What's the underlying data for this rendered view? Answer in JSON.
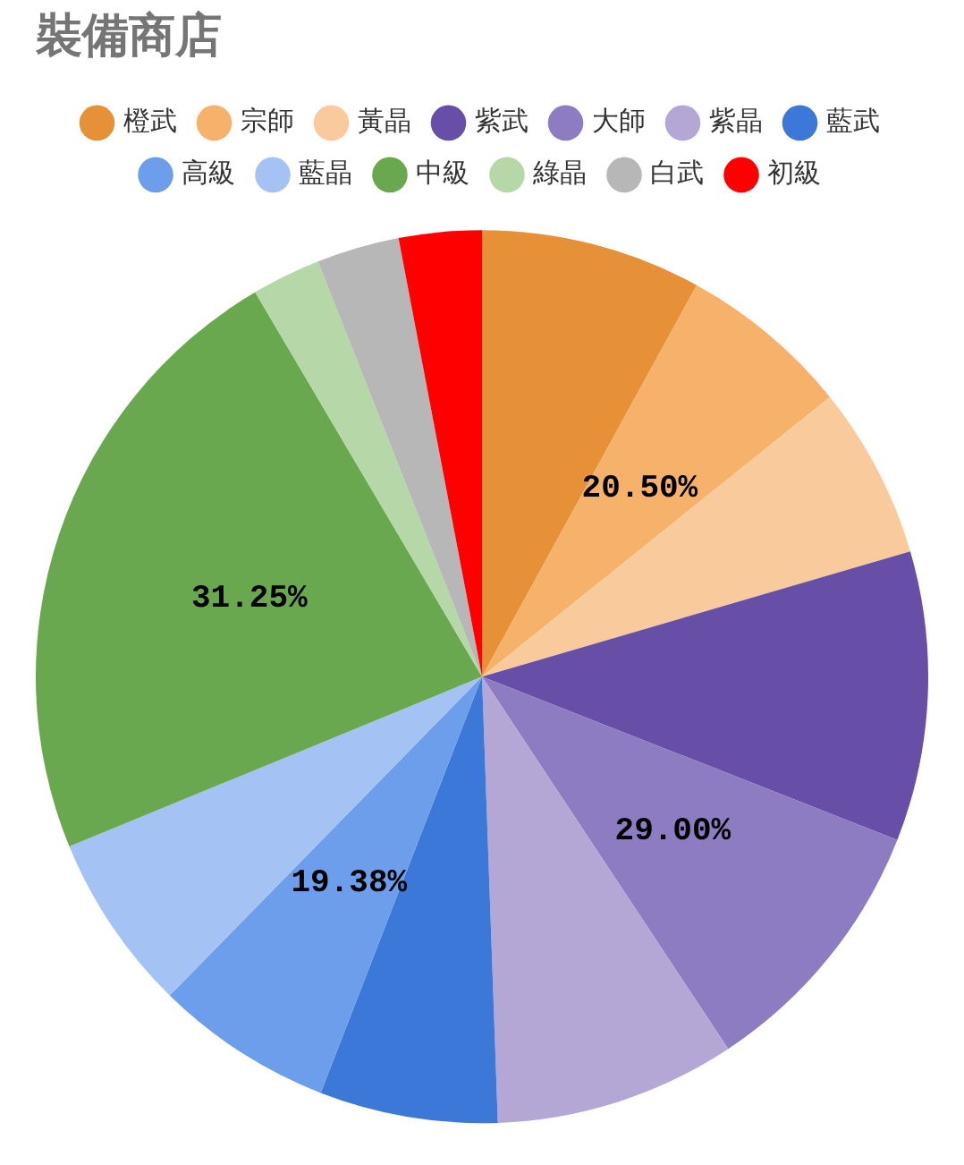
{
  "chart_data": {
    "type": "pie",
    "title": "裝備商店",
    "categories": [
      "橙武",
      "宗師",
      "黃晶",
      "紫武",
      "大師",
      "紫晶",
      "藍武",
      "高級",
      "藍晶",
      "中級",
      "綠晶",
      "白武",
      "初級"
    ],
    "values": [
      8,
      6.25,
      6.25,
      10.5,
      9.75,
      8.75,
      6.46,
      6.46,
      6.46,
      22.75,
      2.5,
      3,
      3
    ],
    "colors": [
      "#e69138",
      "#f6b26b",
      "#f9cb9c",
      "#674ea7",
      "#8e7cc3",
      "#b4a7d6",
      "#3c78d8",
      "#6d9eeb",
      "#a4c2f4",
      "#6aa84f",
      "#b6d7a8",
      "#b7b7b7",
      "#ff0000"
    ],
    "legend": "top",
    "annotations": [
      {
        "text": "20.50%",
        "x": "宗師"
      },
      {
        "text": "29.00%",
        "x": "大師"
      },
      {
        "text": "19.38%",
        "x": "高級"
      },
      {
        "text": "31.25%",
        "x": "中級"
      }
    ]
  }
}
